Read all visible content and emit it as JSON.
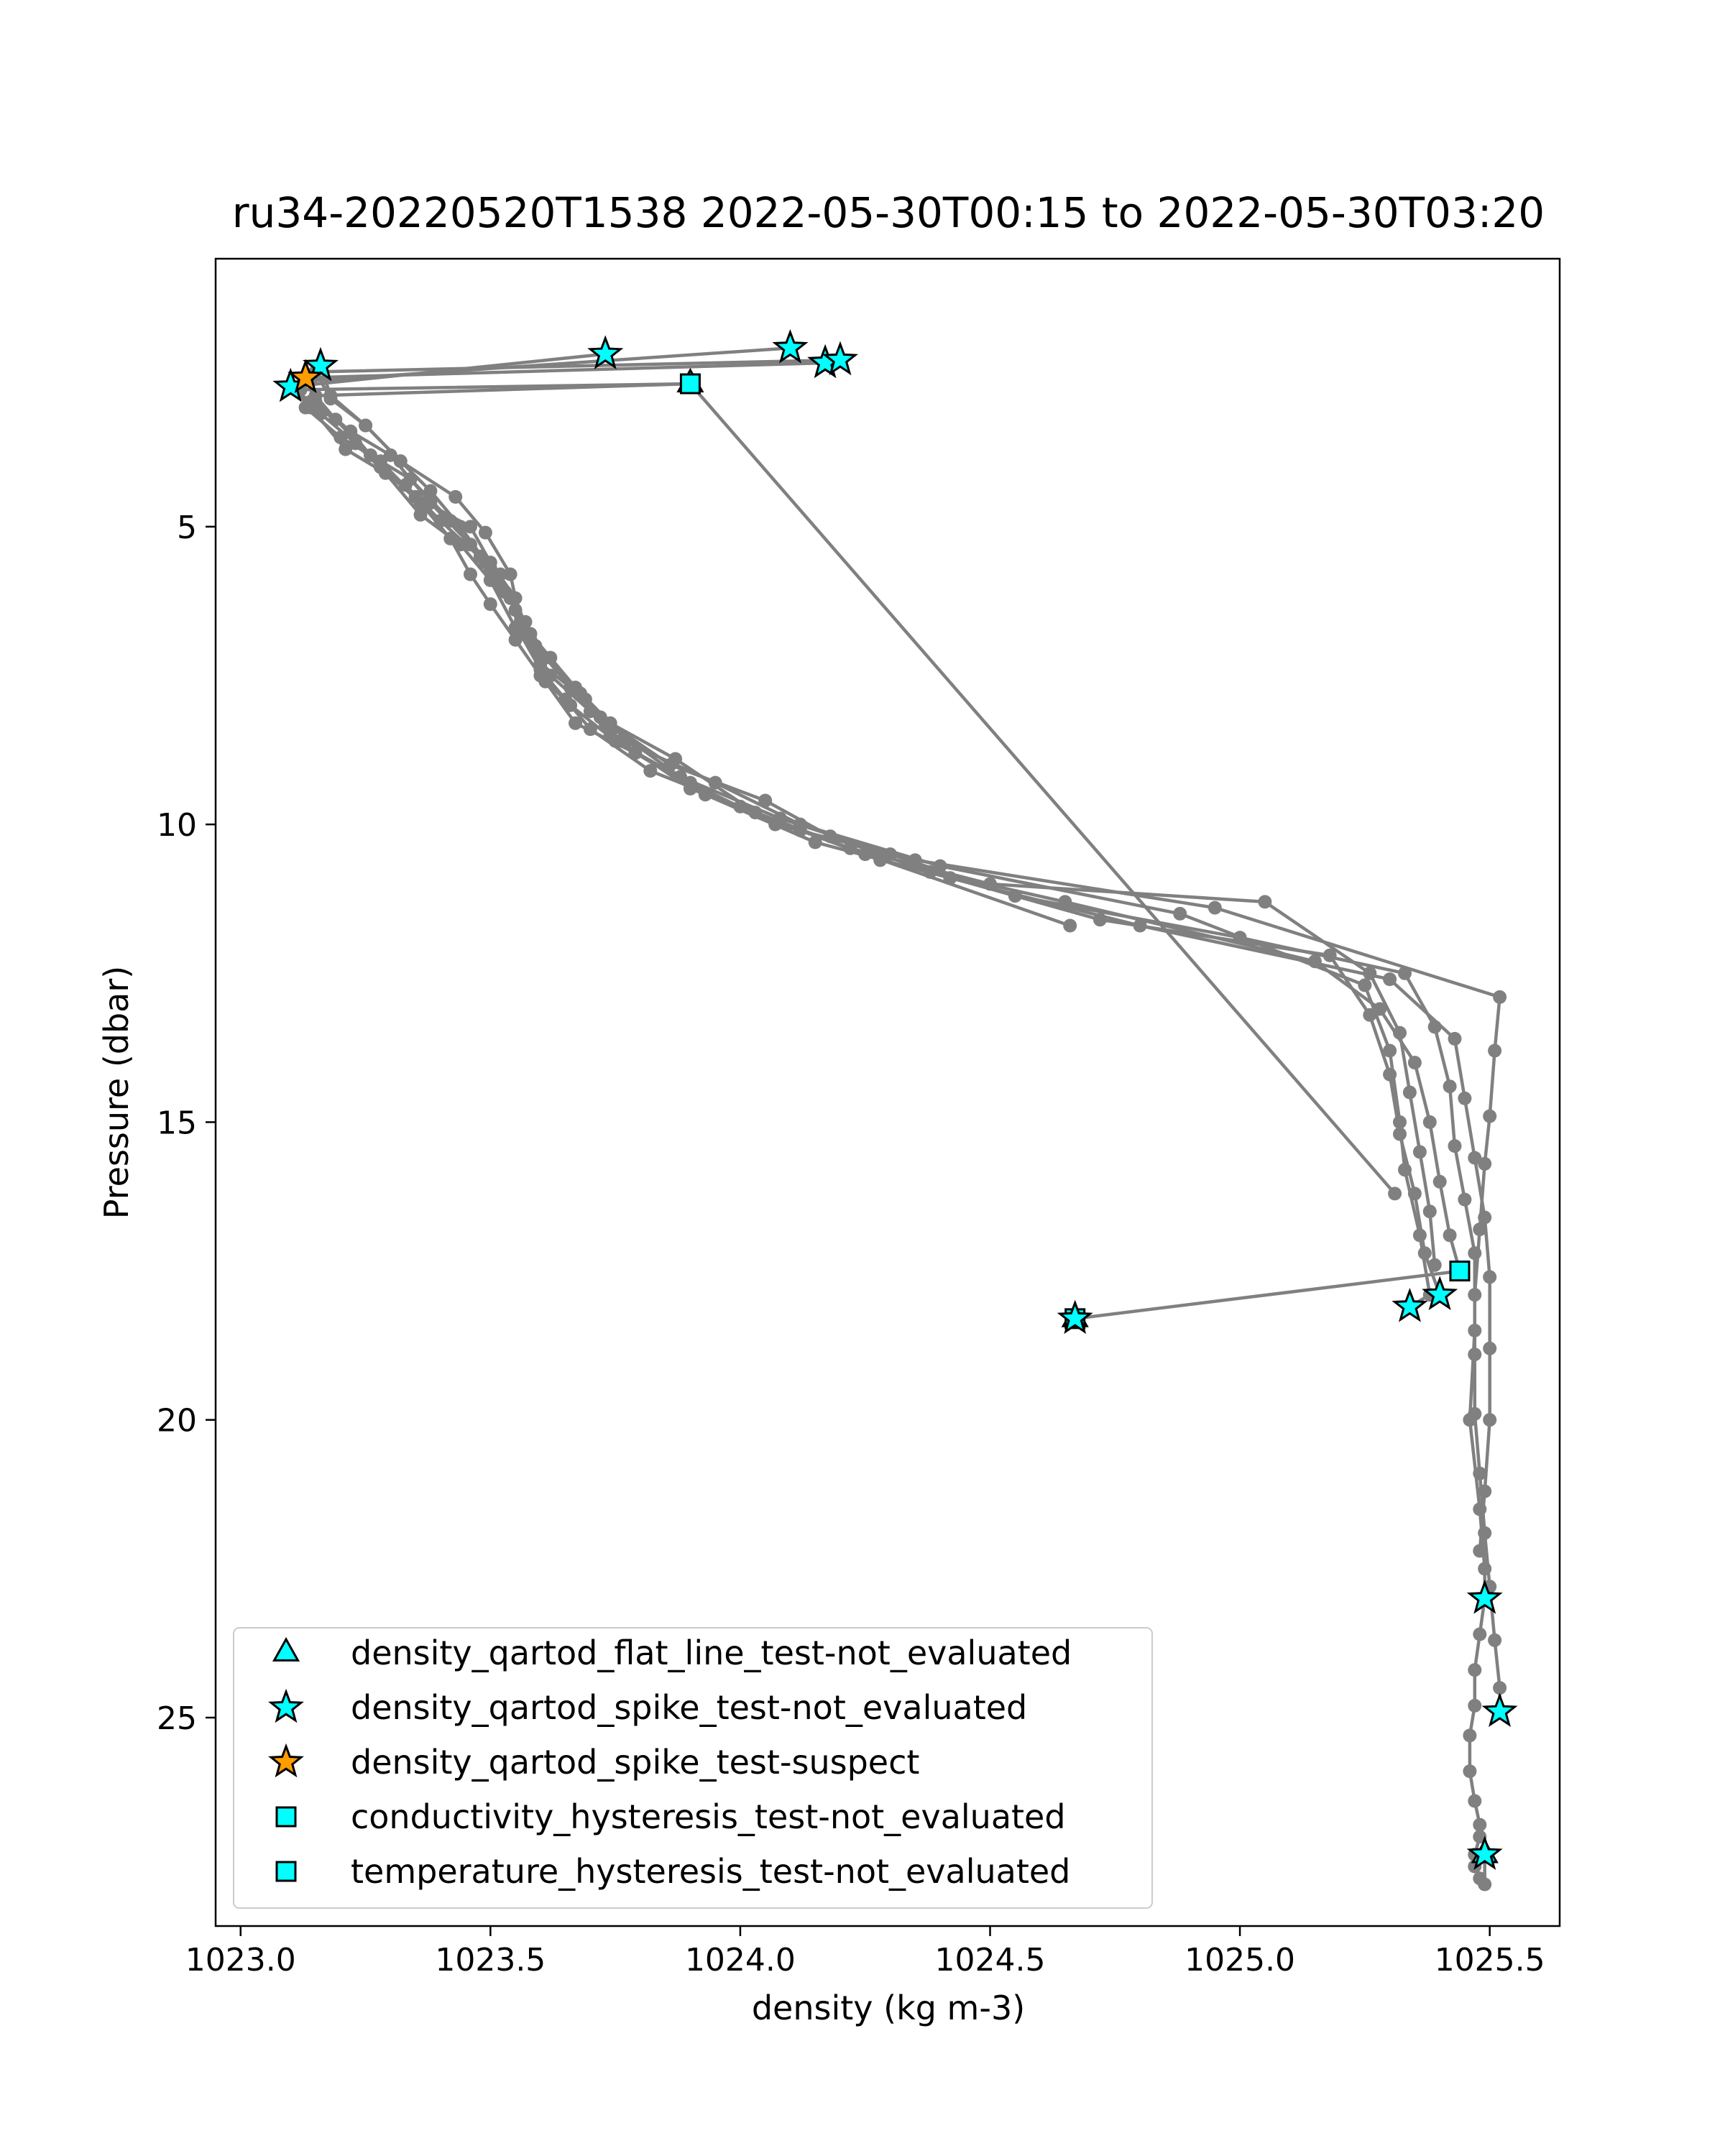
{
  "chart_data": {
    "type": "scatter",
    "title": "ru34-20220520T1538 2022-05-30T00:15 to 2022-05-30T03:20",
    "xlabel": "density (kg m-3)",
    "ylabel": "Pressure (dbar)",
    "xlim": [
      1022.95,
      1025.64
    ],
    "ylim": [
      28.5,
      0.5
    ],
    "y_inverted": true,
    "x_ticks": [
      1023.0,
      1023.5,
      1024.0,
      1024.5,
      1025.0,
      1025.5
    ],
    "x_tick_labels": [
      "1023.0",
      "1023.5",
      "1024.0",
      "1024.5",
      "1025.0",
      "1025.5"
    ],
    "y_ticks": [
      5,
      10,
      15,
      20,
      25
    ],
    "y_tick_labels": [
      "5",
      "10",
      "15",
      "20",
      "25"
    ],
    "grid": false,
    "legend_position": "lower-left",
    "profile_color": "#808080",
    "profiles": [
      {
        "x": [
          1023.9,
          1023.12,
          1023.13,
          1023.2,
          1023.28,
          1023.35,
          1023.46,
          1023.5,
          1023.55,
          1023.58,
          1023.62,
          1023.7,
          1023.74,
          1023.95,
          1024.12,
          1024.4,
          1024.88,
          1025.25,
          1025.3,
          1025.32,
          1025.33,
          1025.36,
          1025.38,
          1025.34
        ],
        "y": [
          2.6,
          2.7,
          3.0,
          3.5,
          3.9,
          4.5,
          5.0,
          5.6,
          6.2,
          6.9,
          7.5,
          8.1,
          8.5,
          9.3,
          10.0,
          10.7,
          11.5,
          12.7,
          13.8,
          15.0,
          15.8,
          16.9,
          17.9,
          18.1
        ]
      },
      {
        "x": [
          1024.1,
          1023.14,
          1023.15,
          1023.22,
          1023.3,
          1023.38,
          1023.46,
          1023.52,
          1023.55,
          1023.59,
          1023.66,
          1023.72,
          1023.86,
          1024.05,
          1024.18,
          1024.38,
          1024.72,
          1025.18,
          1025.26,
          1025.3,
          1025.32,
          1025.35,
          1025.37,
          1025.4
        ],
        "y": [
          2.0,
          2.55,
          2.9,
          3.4,
          3.8,
          4.6,
          5.3,
          5.8,
          6.4,
          7.0,
          7.7,
          8.2,
          9.0,
          9.6,
          10.2,
          10.8,
          11.6,
          12.2,
          13.2,
          14.2,
          15.2,
          16.2,
          17.2,
          17.9
        ]
      },
      {
        "x": [
          1024.2,
          1023.15,
          1023.18,
          1023.25,
          1023.32,
          1023.43,
          1023.49,
          1023.54,
          1023.56,
          1023.62,
          1023.68,
          1023.73,
          1023.88,
          1024.08,
          1024.3,
          1024.55,
          1025.0,
          1025.33,
          1025.39,
          1025.42,
          1025.43,
          1025.45,
          1025.47,
          1025.47,
          1025.46,
          1025.48,
          1025.49,
          1025.49
        ],
        "y": [
          2.2,
          2.4,
          2.85,
          3.3,
          3.9,
          4.5,
          5.1,
          5.8,
          6.6,
          7.2,
          7.8,
          8.3,
          9.2,
          9.9,
          10.5,
          11.2,
          11.9,
          12.5,
          13.4,
          14.4,
          15.4,
          16.3,
          17.2,
          18.5,
          20.0,
          21.5,
          22.5,
          23.0
        ]
      },
      {
        "x": [
          1024.17,
          1023.13,
          1023.16,
          1023.23,
          1023.29,
          1023.36,
          1023.44,
          1023.5,
          1023.55,
          1023.6,
          1023.69,
          1023.76,
          1023.9,
          1024.12,
          1024.28,
          1024.65,
          1025.15,
          1025.28,
          1025.35,
          1025.38,
          1025.4,
          1025.42,
          1025.44
        ],
        "y": [
          2.25,
          2.5,
          3.1,
          3.6,
          4.1,
          4.8,
          5.3,
          5.9,
          6.7,
          7.3,
          7.9,
          8.6,
          9.4,
          10.1,
          10.6,
          11.3,
          12.3,
          13.1,
          14.0,
          15.0,
          16.0,
          16.9,
          17.5
        ]
      },
      {
        "x": [
          1023.73,
          1023.1,
          1023.14,
          1023.21,
          1023.33,
          1023.4,
          1023.49,
          1023.53,
          1023.58,
          1023.61,
          1023.67,
          1023.79,
          1023.93,
          1024.15,
          1024.42,
          1024.8,
          1025.3,
          1025.43,
          1025.45,
          1025.47,
          1025.49,
          1025.5,
          1025.5,
          1025.5,
          1025.49,
          1025.48
        ],
        "y": [
          2.1,
          2.65,
          3.0,
          3.7,
          4.3,
          4.9,
          5.6,
          6.1,
          6.8,
          7.6,
          8.3,
          8.8,
          9.5,
          10.3,
          10.9,
          11.7,
          12.6,
          13.6,
          14.6,
          15.6,
          16.6,
          17.6,
          18.8,
          20.0,
          21.2,
          22.2
        ]
      },
      {
        "x": [
          1023.1,
          1023.14,
          1023.22,
          1023.28,
          1023.36,
          1023.42,
          1023.46,
          1023.5,
          1023.55,
          1023.6,
          1023.66,
          1023.75,
          1023.9,
          1024.07,
          1024.35,
          1024.95,
          1025.52,
          1025.51,
          1025.5,
          1025.49,
          1025.48,
          1025.47,
          1025.47,
          1025.47,
          1025.48,
          1025.49,
          1025.5,
          1025.51,
          1025.52,
          1025.52
        ],
        "y": [
          2.65,
          2.9,
          3.4,
          4.0,
          4.6,
          5.2,
          5.8,
          6.3,
          6.9,
          7.5,
          8.0,
          8.6,
          9.3,
          10.0,
          10.6,
          11.4,
          12.9,
          13.8,
          14.9,
          15.7,
          16.8,
          17.9,
          18.9,
          19.9,
          20.9,
          21.9,
          22.8,
          23.7,
          24.5,
          24.9
        ]
      },
      {
        "x": [
          1023.16,
          1023.18,
          1023.25,
          1023.32,
          1023.38,
          1023.44,
          1023.5,
          1023.54,
          1023.56,
          1023.6,
          1023.65,
          1023.7,
          1023.82,
          1024.0,
          1024.22,
          1024.5,
          1025.05,
          1025.26,
          1025.32,
          1025.34,
          1025.36,
          1025.38,
          1025.39
        ],
        "y": [
          2.3,
          2.8,
          3.3,
          3.9,
          4.4,
          5.0,
          5.7,
          6.2,
          6.8,
          7.4,
          7.9,
          8.4,
          9.1,
          9.7,
          10.4,
          11.0,
          11.3,
          12.5,
          13.5,
          14.5,
          15.5,
          16.5,
          17.4
        ]
      },
      {
        "x": [
          1023.9,
          1023.15,
          1023.19,
          1023.26,
          1023.34,
          1023.42,
          1023.48,
          1023.52,
          1023.57,
          1023.61,
          1023.67,
          1023.74,
          1023.87,
          1024.03,
          1024.25,
          1024.66
        ],
        "y": [
          2.6,
          2.8,
          3.2,
          3.8,
          4.2,
          4.9,
          5.5,
          6.0,
          6.6,
          7.2,
          7.7,
          8.3,
          8.9,
          9.8,
          10.5,
          11.7
        ]
      },
      {
        "x": [
          1023.9,
          1025.31
        ],
        "y": [
          2.6,
          16.2
        ]
      },
      {
        "x": [
          1025.49,
          1025.48,
          1025.47,
          1025.47,
          1025.46,
          1025.46,
          1025.47,
          1025.48,
          1025.48,
          1025.47,
          1025.47,
          1025.48,
          1025.49,
          1025.49
        ],
        "y": [
          23.0,
          23.6,
          24.2,
          24.8,
          25.3,
          25.9,
          26.4,
          26.8,
          27.0,
          27.3,
          27.5,
          27.7,
          27.8,
          27.3
        ]
      },
      {
        "x": [
          1025.44,
          1024.67
        ],
        "y": [
          17.5,
          18.3
        ]
      }
    ],
    "markers": [
      {
        "kind": "star",
        "color": "#00ffff",
        "x": 1023.16,
        "y": 2.3
      },
      {
        "kind": "star",
        "color": "#00ffff",
        "x": 1023.1,
        "y": 2.65
      },
      {
        "kind": "star",
        "color": "#00ffff",
        "x": 1023.73,
        "y": 2.1
      },
      {
        "kind": "star",
        "color": "#00ffff",
        "x": 1024.1,
        "y": 2.0
      },
      {
        "kind": "star",
        "color": "#00ffff",
        "x": 1024.17,
        "y": 2.25
      },
      {
        "kind": "star",
        "color": "#00ffff",
        "x": 1024.2,
        "y": 2.2
      },
      {
        "kind": "star",
        "color": "#ff9d00",
        "x": 1023.13,
        "y": 2.5
      },
      {
        "kind": "star",
        "color": "#00ffff",
        "x": 1025.4,
        "y": 17.9
      },
      {
        "kind": "star",
        "color": "#00ffff",
        "x": 1025.34,
        "y": 18.1
      },
      {
        "kind": "star",
        "color": "#00ffff",
        "x": 1025.49,
        "y": 23.0
      },
      {
        "kind": "star",
        "color": "#00ffff",
        "x": 1025.52,
        "y": 24.9
      },
      {
        "kind": "star",
        "color": "#00ffff",
        "x": 1025.49,
        "y": 27.3
      },
      {
        "kind": "star",
        "color": "#00ffff",
        "x": 1024.67,
        "y": 18.3
      },
      {
        "kind": "triangle",
        "color": "#00ffff",
        "x": 1023.9,
        "y": 2.6
      },
      {
        "kind": "triangle",
        "color": "#00ffff",
        "x": 1024.67,
        "y": 18.3
      },
      {
        "kind": "triangle",
        "color": "#00ffff",
        "x": 1025.49,
        "y": 27.3
      },
      {
        "kind": "square",
        "color": "#00ffff",
        "x": 1023.9,
        "y": 2.6
      },
      {
        "kind": "square",
        "color": "#00ffff",
        "x": 1024.67,
        "y": 18.3
      },
      {
        "kind": "square",
        "color": "#00ffff",
        "x": 1025.44,
        "y": 17.5
      }
    ],
    "legend": [
      {
        "label": "density_qartod_flat_line_test-not_evaluated",
        "marker": "triangle",
        "color": "#00ffff"
      },
      {
        "label": "density_qartod_spike_test-not_evaluated",
        "marker": "star",
        "color": "#00ffff"
      },
      {
        "label": "density_qartod_spike_test-suspect",
        "marker": "star",
        "color": "#ff9d00"
      },
      {
        "label": "conductivity_hysteresis_test-not_evaluated",
        "marker": "square",
        "color": "#00ffff"
      },
      {
        "label": "temperature_hysteresis_test-not_evaluated",
        "marker": "square",
        "color": "#00ffff"
      }
    ]
  }
}
